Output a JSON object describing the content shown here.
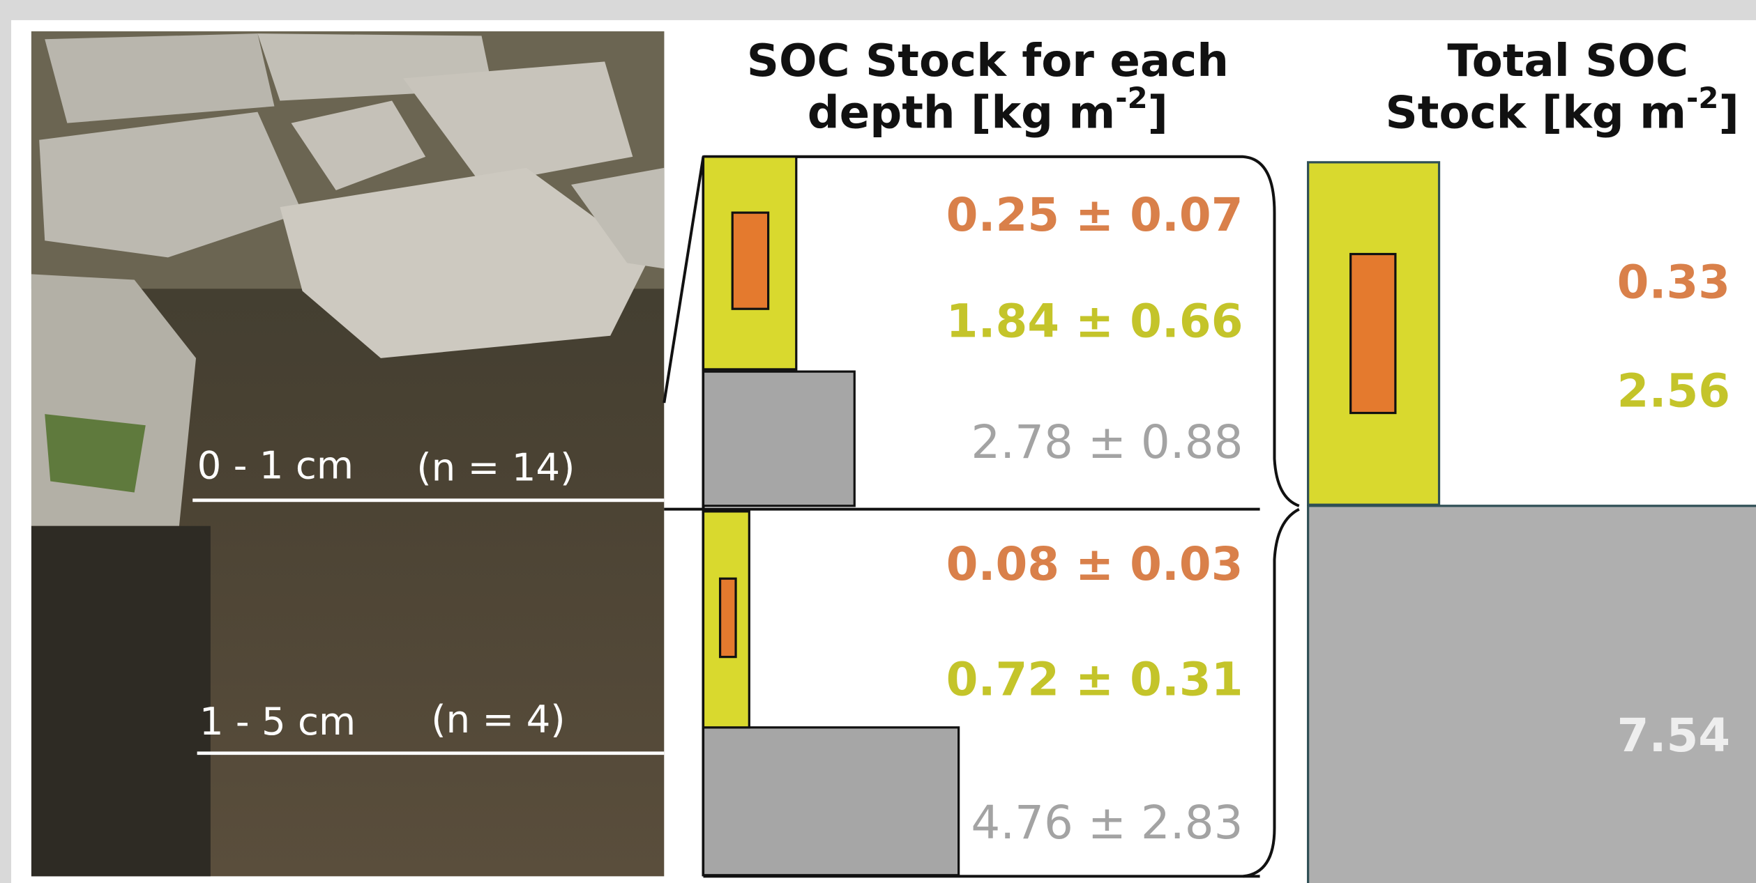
{
  "headers": {
    "depth": {
      "line1": "SOC Stock for each",
      "line2": "depth [kg m",
      "sup": "-2",
      "end": "]"
    },
    "total": {
      "line1": "Total SOC",
      "line2": "Stock [kg m",
      "sup": "-2",
      "end": "]"
    }
  },
  "photo_labels": [
    {
      "depth": "0 - 1 cm",
      "n": "(n = 14)"
    },
    {
      "depth": "1 - 5 cm",
      "n": "(n = 4)"
    }
  ],
  "depth_values": [
    [
      "0.25 ± 0.07",
      "1.84 ± 0.66",
      "2.78 ± 0.88"
    ],
    [
      "0.08 ± 0.03",
      "0.72 ± 0.31",
      "4.76 ± 2.83"
    ]
  ],
  "total_values": [
    "0.33",
    "2.56",
    "7.54"
  ]
}
